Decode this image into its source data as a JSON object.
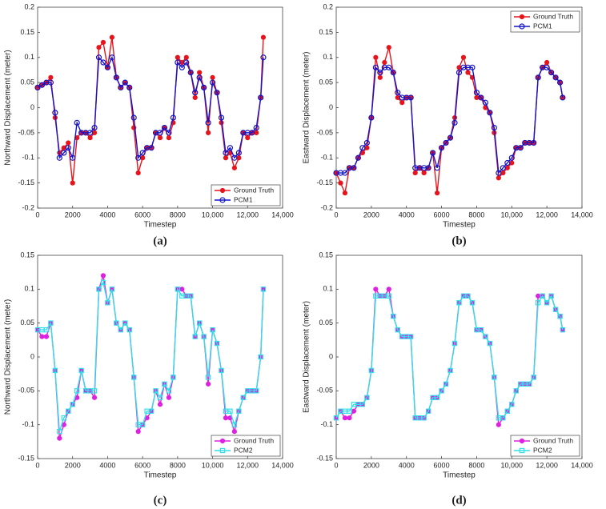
{
  "chart_data": [
    {
      "type": "line",
      "caption": "(a)",
      "xlabel": "Timestep",
      "ylabel": "Northward Displacement (meter)",
      "legend": "lower right",
      "x": [
        0,
        250,
        500,
        750,
        1000,
        1250,
        1500,
        1750,
        2000,
        2250,
        2500,
        2750,
        3000,
        3250,
        3500,
        3750,
        4000,
        4250,
        4500,
        4750,
        5000,
        5250,
        5500,
        5750,
        6000,
        6250,
        6500,
        6750,
        7000,
        7250,
        7500,
        7750,
        8000,
        8250,
        8500,
        8750,
        9000,
        9250,
        9500,
        9750,
        10000,
        10250,
        10500,
        10750,
        11000,
        11250,
        11500,
        11750,
        12000,
        12250,
        12500,
        12750,
        12900
      ],
      "xlim": [
        0,
        14000
      ],
      "xticks": [
        0,
        2000,
        4000,
        6000,
        8000,
        {
          "value": 10000,
          "label": "10,000"
        },
        {
          "value": 12000,
          "label": "12,000"
        },
        {
          "value": 14000,
          "label": "14,000"
        }
      ],
      "ylim": [
        -0.2,
        0.2
      ],
      "yticks": [
        -0.2,
        -0.15,
        -0.1,
        -0.05,
        0,
        0.05,
        0.1,
        0.15,
        0.2
      ],
      "series": [
        {
          "name": "Ground Truth",
          "color": "#e8141c",
          "marker": "circle-filled",
          "values": [
            0.04,
            0.045,
            0.05,
            0.06,
            -0.02,
            -0.09,
            -0.08,
            -0.07,
            -0.15,
            -0.06,
            -0.05,
            -0.05,
            -0.06,
            -0.05,
            0.12,
            0.13,
            0.08,
            0.14,
            0.06,
            0.04,
            0.05,
            0.04,
            -0.04,
            -0.13,
            -0.1,
            -0.08,
            -0.08,
            -0.05,
            -0.06,
            -0.04,
            -0.06,
            -0.03,
            0.1,
            0.09,
            0.1,
            0.07,
            0.02,
            0.07,
            0.04,
            -0.05,
            0.06,
            0.03,
            -0.03,
            -0.1,
            -0.09,
            -0.12,
            -0.1,
            -0.05,
            -0.06,
            -0.05,
            -0.05,
            0.02,
            0.14
          ]
        },
        {
          "name": "PCM1",
          "color": "#1414c8",
          "marker": "circle-open",
          "values": [
            0.04,
            0.045,
            0.05,
            0.05,
            -0.01,
            -0.1,
            -0.09,
            -0.08,
            -0.1,
            -0.03,
            -0.05,
            -0.05,
            -0.05,
            -0.04,
            0.1,
            0.09,
            0.08,
            0.1,
            0.06,
            0.04,
            0.05,
            0.04,
            -0.02,
            -0.1,
            -0.09,
            -0.08,
            -0.08,
            -0.05,
            -0.05,
            -0.04,
            -0.05,
            -0.02,
            0.09,
            0.08,
            0.09,
            0.07,
            0.03,
            0.06,
            0.04,
            -0.03,
            0.05,
            0.03,
            -0.02,
            -0.09,
            -0.08,
            -0.1,
            -0.09,
            -0.05,
            -0.05,
            -0.05,
            -0.04,
            0.02,
            0.1
          ]
        }
      ]
    },
    {
      "type": "line",
      "caption": "(b)",
      "xlabel": "Timestep",
      "ylabel": "Eastward Displacement (meter)",
      "legend": "upper right",
      "x": [
        0,
        250,
        500,
        750,
        1000,
        1250,
        1500,
        1750,
        2000,
        2250,
        2500,
        2750,
        3000,
        3250,
        3500,
        3750,
        4000,
        4250,
        4500,
        4750,
        5000,
        5250,
        5500,
        5750,
        6000,
        6250,
        6500,
        6750,
        7000,
        7250,
        7500,
        7750,
        8000,
        8250,
        8500,
        8750,
        9000,
        9250,
        9500,
        9750,
        10000,
        10250,
        10500,
        10750,
        11000,
        11250,
        11500,
        11750,
        12000,
        12250,
        12500,
        12750,
        12900
      ],
      "xlim": [
        0,
        14000
      ],
      "xticks": [
        0,
        2000,
        4000,
        6000,
        8000,
        {
          "value": 10000,
          "label": "10,000"
        },
        {
          "value": 12000,
          "label": "12,000"
        },
        {
          "value": 14000,
          "label": "14,000"
        }
      ],
      "ylim": [
        -0.2,
        0.2
      ],
      "yticks": [
        -0.2,
        -0.15,
        -0.1,
        -0.05,
        0,
        0.05,
        0.1,
        0.15,
        0.2
      ],
      "series": [
        {
          "name": "Ground Truth",
          "color": "#e8141c",
          "marker": "circle-filled",
          "values": [
            -0.13,
            -0.15,
            -0.17,
            -0.12,
            -0.12,
            -0.1,
            -0.09,
            -0.08,
            -0.02,
            0.1,
            0.06,
            0.09,
            0.12,
            0.07,
            0.02,
            0.01,
            0.02,
            0.02,
            -0.13,
            -0.12,
            -0.13,
            -0.12,
            -0.09,
            -0.17,
            -0.08,
            -0.07,
            -0.06,
            -0.02,
            0.08,
            0.1,
            0.07,
            0.06,
            0.02,
            0.02,
            0,
            -0.01,
            -0.05,
            -0.14,
            -0.13,
            -0.12,
            -0.11,
            -0.08,
            -0.08,
            -0.07,
            -0.07,
            -0.07,
            0.06,
            0.08,
            0.09,
            0.07,
            0.06,
            0.05,
            0.02
          ]
        },
        {
          "name": "PCM1",
          "color": "#1414c8",
          "marker": "circle-open",
          "values": [
            -0.13,
            -0.13,
            -0.13,
            -0.12,
            -0.12,
            -0.1,
            -0.08,
            -0.07,
            -0.02,
            0.08,
            0.07,
            0.08,
            0.08,
            0.07,
            0.03,
            0.02,
            0.02,
            0.02,
            -0.12,
            -0.12,
            -0.12,
            -0.12,
            -0.09,
            -0.12,
            -0.08,
            -0.07,
            -0.06,
            -0.03,
            0.07,
            0.08,
            0.08,
            0.08,
            0.03,
            0.02,
            0.01,
            -0.01,
            -0.04,
            -0.13,
            -0.12,
            -0.11,
            -0.1,
            -0.08,
            -0.08,
            -0.07,
            -0.07,
            -0.07,
            0.06,
            0.08,
            0.08,
            0.07,
            0.06,
            0.05,
            0.02
          ]
        }
      ]
    },
    {
      "type": "line",
      "caption": "(c)",
      "xlabel": "Timestep",
      "ylabel": "Northward Displacement (meter)",
      "legend": "lower right",
      "x": [
        0,
        250,
        500,
        750,
        1000,
        1250,
        1500,
        1750,
        2000,
        2250,
        2500,
        2750,
        3000,
        3250,
        3500,
        3750,
        4000,
        4250,
        4500,
        4750,
        5000,
        5250,
        5500,
        5750,
        6000,
        6250,
        6500,
        6750,
        7000,
        7250,
        7500,
        7750,
        8000,
        8250,
        8500,
        8750,
        9000,
        9250,
        9500,
        9750,
        10000,
        10250,
        10500,
        10750,
        11000,
        11250,
        11500,
        11750,
        12000,
        12250,
        12500,
        12750,
        12900
      ],
      "xlim": [
        0,
        14000
      ],
      "xticks": [
        0,
        2000,
        4000,
        6000,
        8000,
        {
          "value": 10000,
          "label": "10,000"
        },
        {
          "value": 12000,
          "label": "12,000"
        },
        {
          "value": 14000,
          "label": "14,000"
        }
      ],
      "ylim": [
        -0.15,
        0.15
      ],
      "yticks": [
        -0.15,
        -0.1,
        -0.05,
        0,
        0.05,
        0.1,
        0.15
      ],
      "series": [
        {
          "name": "Ground Truth",
          "color": "#e020e0",
          "marker": "circle-filled",
          "values": [
            0.04,
            0.03,
            0.03,
            0.05,
            -0.02,
            -0.12,
            -0.1,
            -0.08,
            -0.07,
            -0.06,
            -0.02,
            -0.05,
            -0.05,
            -0.06,
            0.1,
            0.12,
            0.08,
            0.1,
            0.05,
            0.04,
            0.05,
            0.04,
            -0.03,
            -0.11,
            -0.1,
            -0.09,
            -0.08,
            -0.05,
            -0.07,
            -0.04,
            -0.06,
            -0.03,
            0.1,
            0.1,
            0.09,
            0.09,
            0.03,
            0.05,
            0.03,
            -0.04,
            0.04,
            0.02,
            -0.02,
            -0.09,
            -0.09,
            -0.11,
            -0.08,
            -0.06,
            -0.05,
            -0.05,
            -0.05,
            0,
            0.1
          ]
        },
        {
          "name": "PCM2",
          "color": "#30e0e8",
          "marker": "square-open",
          "values": [
            0.04,
            0.04,
            0.04,
            0.05,
            -0.02,
            -0.11,
            -0.09,
            -0.08,
            -0.07,
            -0.05,
            -0.02,
            -0.05,
            -0.05,
            -0.05,
            0.1,
            0.11,
            0.08,
            0.1,
            0.05,
            0.04,
            0.05,
            0.04,
            -0.03,
            -0.1,
            -0.1,
            -0.08,
            -0.08,
            -0.05,
            -0.06,
            -0.04,
            -0.05,
            -0.03,
            0.1,
            0.09,
            0.09,
            0.09,
            0.03,
            0.05,
            0.03,
            -0.03,
            0.04,
            0.02,
            -0.02,
            -0.08,
            -0.08,
            -0.1,
            -0.08,
            -0.06,
            -0.05,
            -0.05,
            -0.05,
            0,
            0.1
          ]
        }
      ]
    },
    {
      "type": "line",
      "caption": "(d)",
      "xlabel": "Timestep",
      "ylabel": "Eastward Displacement (meter)",
      "legend": "lower right",
      "x": [
        0,
        250,
        500,
        750,
        1000,
        1250,
        1500,
        1750,
        2000,
        2250,
        2500,
        2750,
        3000,
        3250,
        3500,
        3750,
        4000,
        4250,
        4500,
        4750,
        5000,
        5250,
        5500,
        5750,
        6000,
        6250,
        6500,
        6750,
        7000,
        7250,
        7500,
        7750,
        8000,
        8250,
        8500,
        8750,
        9000,
        9250,
        9500,
        9750,
        10000,
        10250,
        10500,
        10750,
        11000,
        11250,
        11500,
        11750,
        12000,
        12250,
        12500,
        12750,
        12900
      ],
      "xlim": [
        0,
        14000
      ],
      "xticks": [
        0,
        2000,
        4000,
        6000,
        8000,
        {
          "value": 10000,
          "label": "10,000"
        },
        {
          "value": 12000,
          "label": "12,000"
        },
        {
          "value": 14000,
          "label": "14,000"
        }
      ],
      "ylim": [
        -0.15,
        0.15
      ],
      "yticks": [
        -0.15,
        -0.1,
        -0.05,
        0,
        0.05,
        0.1,
        0.15
      ],
      "series": [
        {
          "name": "Ground Truth",
          "color": "#e020e0",
          "marker": "circle-filled",
          "values": [
            -0.09,
            -0.08,
            -0.09,
            -0.09,
            -0.08,
            -0.07,
            -0.07,
            -0.06,
            -0.02,
            0.1,
            0.09,
            0.09,
            0.1,
            0.06,
            0.04,
            0.03,
            0.03,
            0.03,
            -0.09,
            -0.09,
            -0.09,
            -0.08,
            -0.06,
            -0.06,
            -0.05,
            -0.04,
            -0.02,
            0.02,
            0.08,
            0.09,
            0.09,
            0.08,
            0.04,
            0.04,
            0.03,
            0.02,
            -0.03,
            -0.1,
            -0.09,
            -0.08,
            -0.07,
            -0.05,
            -0.04,
            -0.04,
            -0.04,
            -0.03,
            0.09,
            0.09,
            0.08,
            0.09,
            0.07,
            0.06,
            0.04
          ]
        },
        {
          "name": "PCM2",
          "color": "#30e0e8",
          "marker": "square-open",
          "values": [
            -0.09,
            -0.08,
            -0.08,
            -0.08,
            -0.07,
            -0.07,
            -0.07,
            -0.06,
            -0.02,
            0.09,
            0.09,
            0.09,
            0.09,
            0.06,
            0.04,
            0.03,
            0.03,
            0.03,
            -0.09,
            -0.09,
            -0.09,
            -0.08,
            -0.06,
            -0.06,
            -0.05,
            -0.04,
            -0.02,
            0.02,
            0.08,
            0.09,
            0.09,
            0.08,
            0.04,
            0.04,
            0.03,
            0.02,
            -0.03,
            -0.09,
            -0.09,
            -0.08,
            -0.07,
            -0.05,
            -0.04,
            -0.04,
            -0.04,
            -0.03,
            0.08,
            0.09,
            0.08,
            0.09,
            0.07,
            0.06,
            0.04
          ]
        }
      ]
    }
  ]
}
